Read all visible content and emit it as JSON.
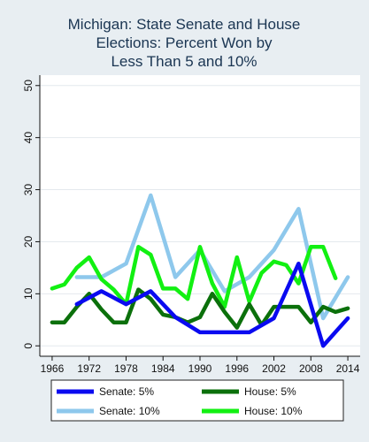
{
  "chart_data": {
    "type": "line",
    "title_lines": [
      "Michigan: State Senate and House",
      "Elections: Percent Won by",
      "Less Than 5 and 10%"
    ],
    "xlabel": "",
    "ylabel": "",
    "xlim": [
      1964,
      2016
    ],
    "ylim": [
      -2,
      52
    ],
    "x_ticks": [
      1966,
      1972,
      1978,
      1984,
      1990,
      1996,
      2002,
      2008,
      2014
    ],
    "y_ticks": [
      0,
      10,
      20,
      30,
      40,
      50
    ],
    "grid": "horizontal",
    "legend_position": "bottom",
    "series": [
      {
        "name": "Senate: 5%",
        "color": "#0a0af0",
        "points": [
          [
            1970,
            8
          ],
          [
            1974,
            10.5
          ],
          [
            1978,
            8
          ],
          [
            1982,
            10.5
          ],
          [
            1986,
            5.5
          ],
          [
            1990,
            2.6
          ],
          [
            1994,
            2.6
          ],
          [
            1998,
            2.6
          ],
          [
            2002,
            5.3
          ],
          [
            2006,
            15.8
          ],
          [
            2010,
            0
          ],
          [
            2014,
            5.3
          ]
        ]
      },
      {
        "name": "House: 5%",
        "color": "#0b700b",
        "points": [
          [
            1966,
            4.5
          ],
          [
            1968,
            4.5
          ],
          [
            1970,
            7.5
          ],
          [
            1972,
            10
          ],
          [
            1974,
            7
          ],
          [
            1976,
            4.5
          ],
          [
            1978,
            4.5
          ],
          [
            1980,
            10.8
          ],
          [
            1982,
            9
          ],
          [
            1984,
            6
          ],
          [
            1986,
            5.5
          ],
          [
            1988,
            4.5
          ],
          [
            1990,
            5.5
          ],
          [
            1992,
            10
          ],
          [
            1994,
            6.5
          ],
          [
            1996,
            3.5
          ],
          [
            1998,
            8
          ],
          [
            2000,
            4
          ],
          [
            2002,
            7.5
          ],
          [
            2004,
            7.5
          ],
          [
            2006,
            7.5
          ],
          [
            2008,
            4.5
          ],
          [
            2010,
            7.5
          ],
          [
            2012,
            6.5
          ],
          [
            2014,
            7.2
          ]
        ]
      },
      {
        "name": "Senate: 10%",
        "color": "#8ec8ec",
        "points": [
          [
            1970,
            13.2
          ],
          [
            1974,
            13.2
          ],
          [
            1978,
            15.8
          ],
          [
            1982,
            28.9
          ],
          [
            1986,
            13.2
          ],
          [
            1990,
            18.4
          ],
          [
            1994,
            10.5
          ],
          [
            1998,
            13.2
          ],
          [
            2002,
            18.4
          ],
          [
            2006,
            26.3
          ],
          [
            2010,
            5.3
          ],
          [
            2014,
            13.2
          ]
        ]
      },
      {
        "name": "House: 10%",
        "color": "#12f012",
        "points": [
          [
            1966,
            11
          ],
          [
            1968,
            11.8
          ],
          [
            1970,
            15
          ],
          [
            1972,
            17
          ],
          [
            1974,
            12.8
          ],
          [
            1976,
            10.8
          ],
          [
            1978,
            8
          ],
          [
            1980,
            19
          ],
          [
            1982,
            17.5
          ],
          [
            1984,
            11
          ],
          [
            1986,
            11
          ],
          [
            1988,
            9
          ],
          [
            1990,
            19
          ],
          [
            1992,
            12
          ],
          [
            1994,
            7.5
          ],
          [
            1996,
            17
          ],
          [
            1998,
            8.5
          ],
          [
            2000,
            14
          ],
          [
            2002,
            16.2
          ],
          [
            2004,
            15.5
          ],
          [
            2006,
            12
          ],
          [
            2008,
            19
          ],
          [
            2010,
            19
          ],
          [
            2012,
            13
          ]
        ]
      }
    ],
    "legend_order": [
      0,
      1,
      2,
      3
    ]
  }
}
